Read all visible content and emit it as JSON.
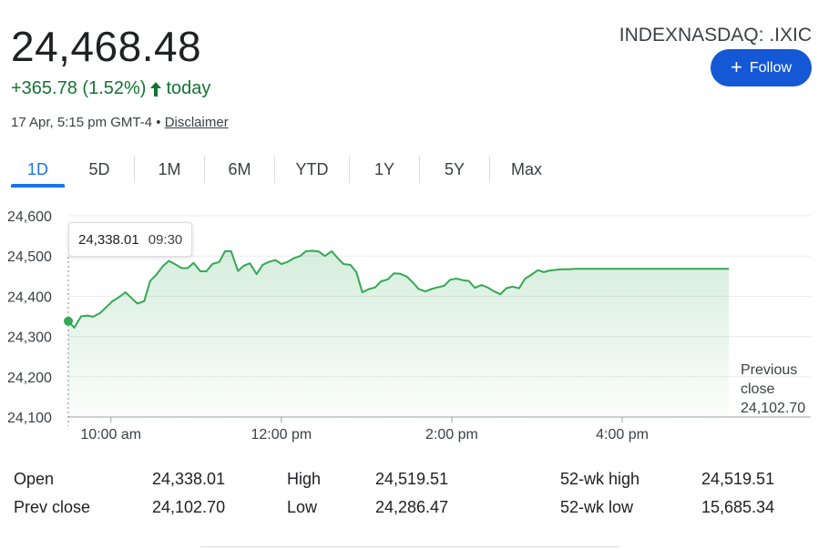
{
  "quote": {
    "price": "24,468.48",
    "change": "+365.78 (1.52%)",
    "change_period": "today",
    "timestamp": "17 Apr, 5:15 pm GMT-4",
    "separator": "•",
    "disclaimer": "Disclaimer",
    "ticker": "INDEXNASDAQ: .IXIC",
    "follow_label": "Follow",
    "up_color": "#137333"
  },
  "tabs": [
    {
      "label": "1D",
      "active": true
    },
    {
      "label": "5D"
    },
    {
      "label": "1M"
    },
    {
      "label": "6M"
    },
    {
      "label": "YTD"
    },
    {
      "label": "1Y"
    },
    {
      "label": "5Y"
    },
    {
      "label": "Max"
    }
  ],
  "tooltip": {
    "value": "24,338.01",
    "time": "09:30"
  },
  "chart_data": {
    "type": "area",
    "y_ticks": [
      "24,600",
      "24,500",
      "24,400",
      "24,300",
      "24,200",
      "24,100"
    ],
    "y_tick_values": [
      24600,
      24500,
      24400,
      24300,
      24200,
      24100
    ],
    "x_ticks": [
      "10:00 am",
      "12:00 pm",
      "2:00 pm",
      "4:00 pm"
    ],
    "x_tick_hours": [
      10,
      12,
      14,
      16
    ],
    "ylim": [
      24100,
      24600
    ],
    "xlim_hours": [
      9.5,
      16.0
    ],
    "x_end_hour": 17.25,
    "line_color": "#34a853",
    "grid": true,
    "previous_close": {
      "label_1": "Previous",
      "label_2": "close",
      "value": "24,102.70"
    },
    "series": [
      {
        "x": [
          9.5,
          9.57,
          9.65,
          9.72,
          9.79,
          9.87,
          9.94,
          10.02,
          10.09,
          10.17,
          10.24,
          10.31,
          10.39,
          10.46,
          10.53,
          10.61,
          10.68,
          10.75,
          10.83,
          10.9,
          10.97,
          11.05,
          11.12,
          11.19,
          11.27,
          11.34,
          11.41,
          11.49,
          11.56,
          11.63,
          11.71,
          11.78,
          11.85,
          11.93,
          12.0,
          12.07,
          12.15,
          12.22,
          12.29,
          12.37,
          12.44,
          12.51,
          12.59,
          12.66,
          12.73,
          12.81,
          12.88,
          12.95,
          13.03,
          13.1,
          13.17,
          13.25,
          13.32,
          13.39,
          13.47,
          13.54,
          13.61,
          13.69,
          13.76,
          13.83,
          13.91,
          13.98,
          14.05,
          14.13,
          14.2,
          14.27,
          14.35,
          14.42,
          14.49,
          14.57,
          14.64,
          14.71,
          14.79,
          14.86,
          14.93,
          15.01,
          15.08,
          15.15,
          15.23,
          15.3,
          15.37,
          15.45,
          15.52,
          15.59,
          15.67,
          15.74,
          15.81,
          15.89,
          15.96,
          16.0,
          16.1,
          16.4,
          16.8,
          17.25
        ],
        "values": [
          24338,
          24322,
          24350,
          24352,
          24349,
          24358,
          24372,
          24388,
          24397,
          24410,
          24396,
          24382,
          24388,
          24438,
          24453,
          24475,
          24488,
          24480,
          24470,
          24470,
          24483,
          24462,
          24462,
          24480,
          24485,
          24512,
          24512,
          24463,
          24476,
          24482,
          24455,
          24478,
          24485,
          24490,
          24480,
          24485,
          24495,
          24500,
          24512,
          24513,
          24511,
          24500,
          24512,
          24495,
          24480,
          24478,
          24460,
          24410,
          24418,
          24422,
          24437,
          24442,
          24457,
          24456,
          24449,
          24435,
          24418,
          24412,
          24418,
          24422,
          24426,
          24441,
          24444,
          24440,
          24438,
          24421,
          24428,
          24422,
          24413,
          24405,
          24420,
          24424,
          24420,
          24444,
          24453,
          24465,
          24460,
          24464,
          24466,
          24467,
          24467,
          24468,
          24468,
          24468,
          24468,
          24468,
          24468,
          24468,
          24468,
          24468,
          24468,
          24468,
          24468,
          24468
        ]
      }
    ]
  },
  "stats": {
    "open_label": "Open",
    "open_value": "24,338.01",
    "prev_close_label": "Prev close",
    "prev_close_value": "24,102.70",
    "high_label": "High",
    "high_value": "24,519.51",
    "low_label": "Low",
    "low_value": "24,286.47",
    "wk_high_label": "52-wk high",
    "wk_high_value": "24,519.51",
    "wk_low_label": "52-wk low",
    "wk_low_value": "15,685.34"
  }
}
